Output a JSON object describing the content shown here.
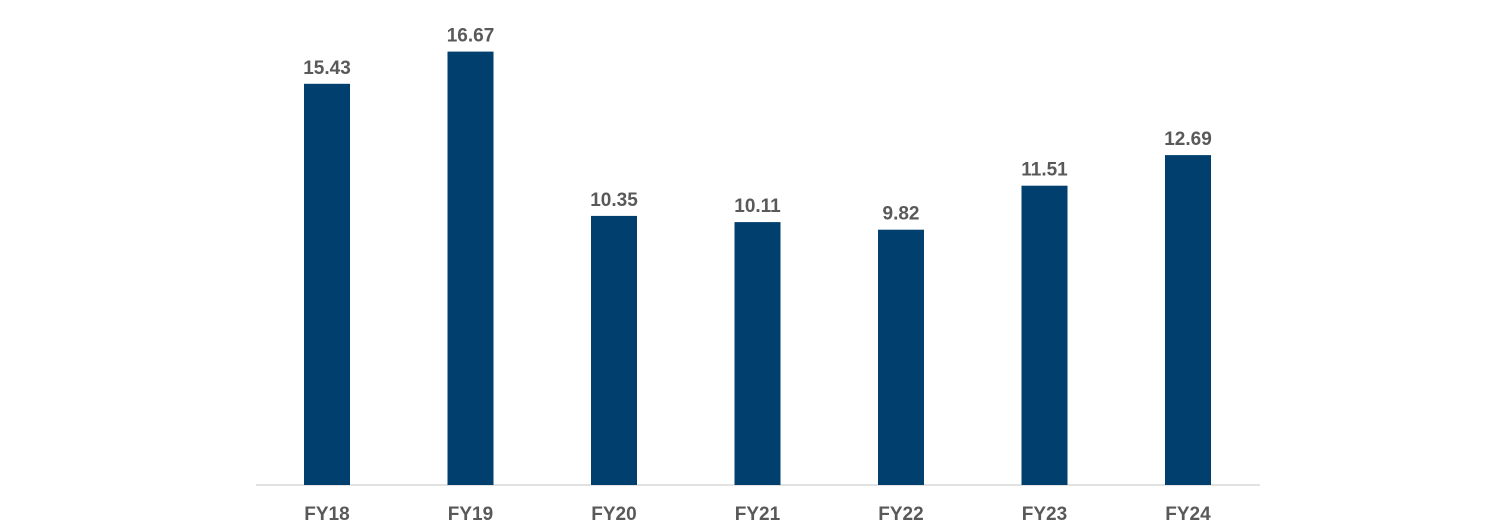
{
  "chart_data": {
    "type": "bar",
    "categories": [
      "FY18",
      "FY19",
      "FY20",
      "FY21",
      "FY22",
      "FY23",
      "FY24"
    ],
    "values": [
      15.43,
      16.67,
      10.35,
      10.11,
      9.82,
      11.51,
      12.69
    ],
    "value_labels": [
      "15.43",
      "16.67",
      "10.35",
      "10.11",
      "9.82",
      "11.51",
      "12.69"
    ],
    "ylim": [
      0,
      18
    ],
    "grid": false,
    "legend": "none",
    "colors": {
      "bar": "#003f6e",
      "label": "#595959",
      "axis": "#d9d9d9"
    }
  }
}
